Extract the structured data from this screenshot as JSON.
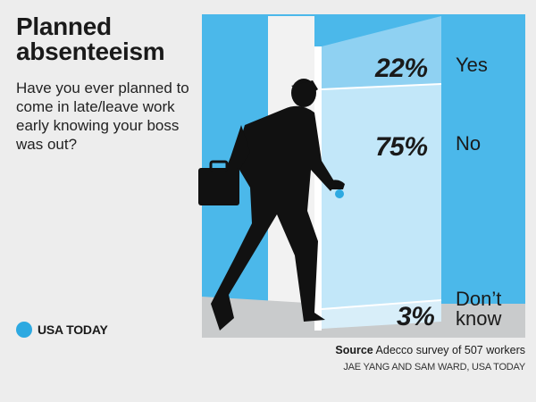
{
  "header": {
    "title": "Planned absenteeism",
    "question": "Have you ever planned to come in late/leave work early knowing your boss was out?"
  },
  "logo": {
    "text": "USA TODAY",
    "color": "#2da9e1"
  },
  "colors": {
    "wall": "#4bb8ea",
    "door_top": "#8fd1f2",
    "door_main": "#c2e7f9",
    "floor": "#c9cbcc",
    "silhouette": "#111111"
  },
  "chart_data": {
    "type": "bar",
    "categories": [
      "Yes",
      "No",
      "Don’t know"
    ],
    "values": [
      22,
      75,
      3
    ],
    "value_labels": [
      "22%",
      "75%",
      "3%"
    ],
    "unit": "%",
    "title": "Planned absenteeism"
  },
  "footer": {
    "source_label": "Source",
    "source_text": "Adecco survey of 507 workers",
    "credit": "JAE YANG AND SAM WARD, USA TODAY"
  }
}
